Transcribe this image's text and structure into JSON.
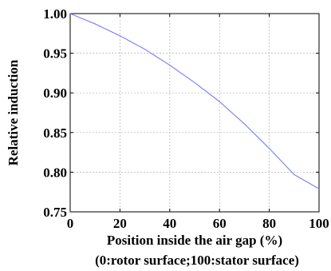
{
  "chart_data": {
    "type": "line",
    "title": "",
    "xlabel": "Position inside the air gap (%)",
    "xlabel_sub": "(0:rotor surface;100:stator surface)",
    "ylabel": "Relative induction",
    "xlim": [
      0,
      100
    ],
    "ylim": [
      0.75,
      1.0
    ],
    "xticks": [
      "0",
      "20",
      "40",
      "60",
      "80",
      "100"
    ],
    "yticks": [
      "0.75",
      "0.80",
      "0.85",
      "0.90",
      "0.95",
      "1.00"
    ],
    "grid": true,
    "line_color": "#8080ff",
    "series": [
      {
        "x": [
          0,
          10,
          20,
          30,
          40,
          50,
          60,
          70,
          80,
          90,
          100
        ],
        "y": [
          1.0,
          0.987,
          0.972,
          0.955,
          0.935,
          0.913,
          0.889,
          0.861,
          0.83,
          0.797,
          0.779
        ]
      }
    ]
  }
}
